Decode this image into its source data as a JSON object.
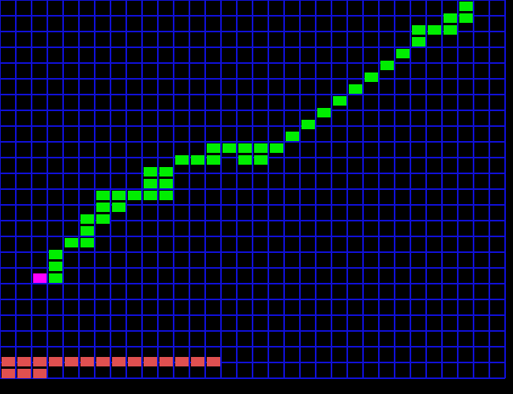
{
  "colors": {
    "background": "#000000",
    "grid_line": "#1010d8",
    "snake": "#00ee00",
    "snake_head": "#ff00ff",
    "progress_bar": "#e05050"
  },
  "board": {
    "columns": 32,
    "rows": 24
  },
  "snake": {
    "head": [
      2,
      20
    ],
    "body": [
      [
        3,
        20
      ],
      [
        3,
        19
      ],
      [
        3,
        18
      ],
      [
        4,
        17
      ],
      [
        5,
        17
      ],
      [
        5,
        16
      ],
      [
        5,
        15
      ],
      [
        6,
        15
      ],
      [
        6,
        14
      ],
      [
        6,
        13
      ],
      [
        7,
        13
      ],
      [
        8,
        13
      ],
      [
        9,
        13
      ],
      [
        7,
        14
      ],
      [
        9,
        12
      ],
      [
        9,
        11
      ],
      [
        10,
        11
      ],
      [
        10,
        12
      ],
      [
        10,
        13
      ],
      [
        11,
        10
      ],
      [
        12,
        10
      ],
      [
        13,
        10
      ],
      [
        13,
        9
      ],
      [
        14,
        9
      ],
      [
        15,
        9
      ],
      [
        16,
        9
      ],
      [
        17,
        9
      ],
      [
        15,
        10
      ],
      [
        16,
        10
      ],
      [
        18,
        8
      ],
      [
        19,
        7
      ],
      [
        20,
        6
      ],
      [
        21,
        5
      ],
      [
        22,
        4
      ],
      [
        23,
        3
      ],
      [
        24,
        2
      ],
      [
        25,
        1
      ],
      [
        26,
        0
      ],
      [
        26,
        -1
      ],
      [
        27,
        -1
      ],
      [
        28,
        -1
      ],
      [
        28,
        -2
      ],
      [
        29,
        -2
      ],
      [
        29,
        -3
      ]
    ]
  },
  "progress_cells": {
    "row_one_count": 14,
    "row_two_count": 3
  }
}
